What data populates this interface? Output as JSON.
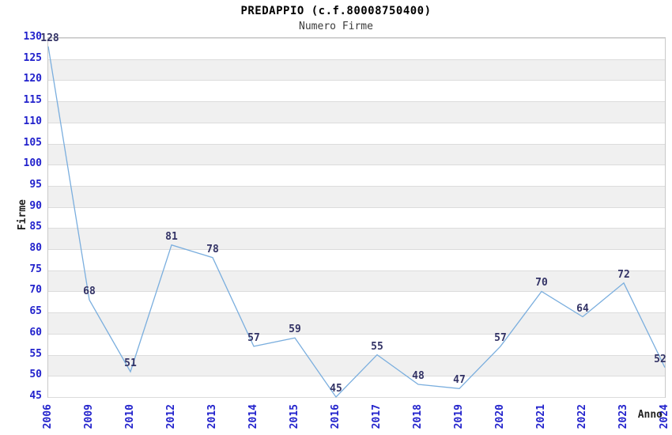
{
  "header": {
    "title": "PREDAPPIO (c.f.80008750400)",
    "subtitle": "Numero Firme"
  },
  "chart_data": {
    "type": "line",
    "title": "PREDAPPIO (c.f.80008750400)",
    "subtitle": "Numero Firme",
    "xlabel": "Anno",
    "ylabel": "Firme",
    "categories": [
      "2006",
      "2009",
      "2010",
      "2012",
      "2013",
      "2014",
      "2015",
      "2016",
      "2017",
      "2018",
      "2019",
      "2020",
      "2021",
      "2022",
      "2023",
      "2024"
    ],
    "values": [
      128,
      68,
      51,
      81,
      78,
      57,
      59,
      45,
      55,
      48,
      47,
      57,
      70,
      64,
      72,
      52
    ],
    "yticks": [
      130,
      125,
      120,
      115,
      110,
      105,
      100,
      95,
      90,
      85,
      80,
      75,
      70,
      65,
      60,
      55,
      50,
      45
    ],
    "ylim": [
      45,
      130
    ],
    "ytick_step": 5,
    "grid": "horizontal-with-alternating-bands",
    "legend": "none",
    "data_labels_visible": true,
    "colors": {
      "line": "#7aaede",
      "tick_label": "#2222cc",
      "data_label": "#333366",
      "band": "#f0f0f0",
      "grid_line": "#dcdcdc",
      "plot_border": "#c9c9c9",
      "title": "#000000",
      "axis_title": "#222222"
    }
  }
}
